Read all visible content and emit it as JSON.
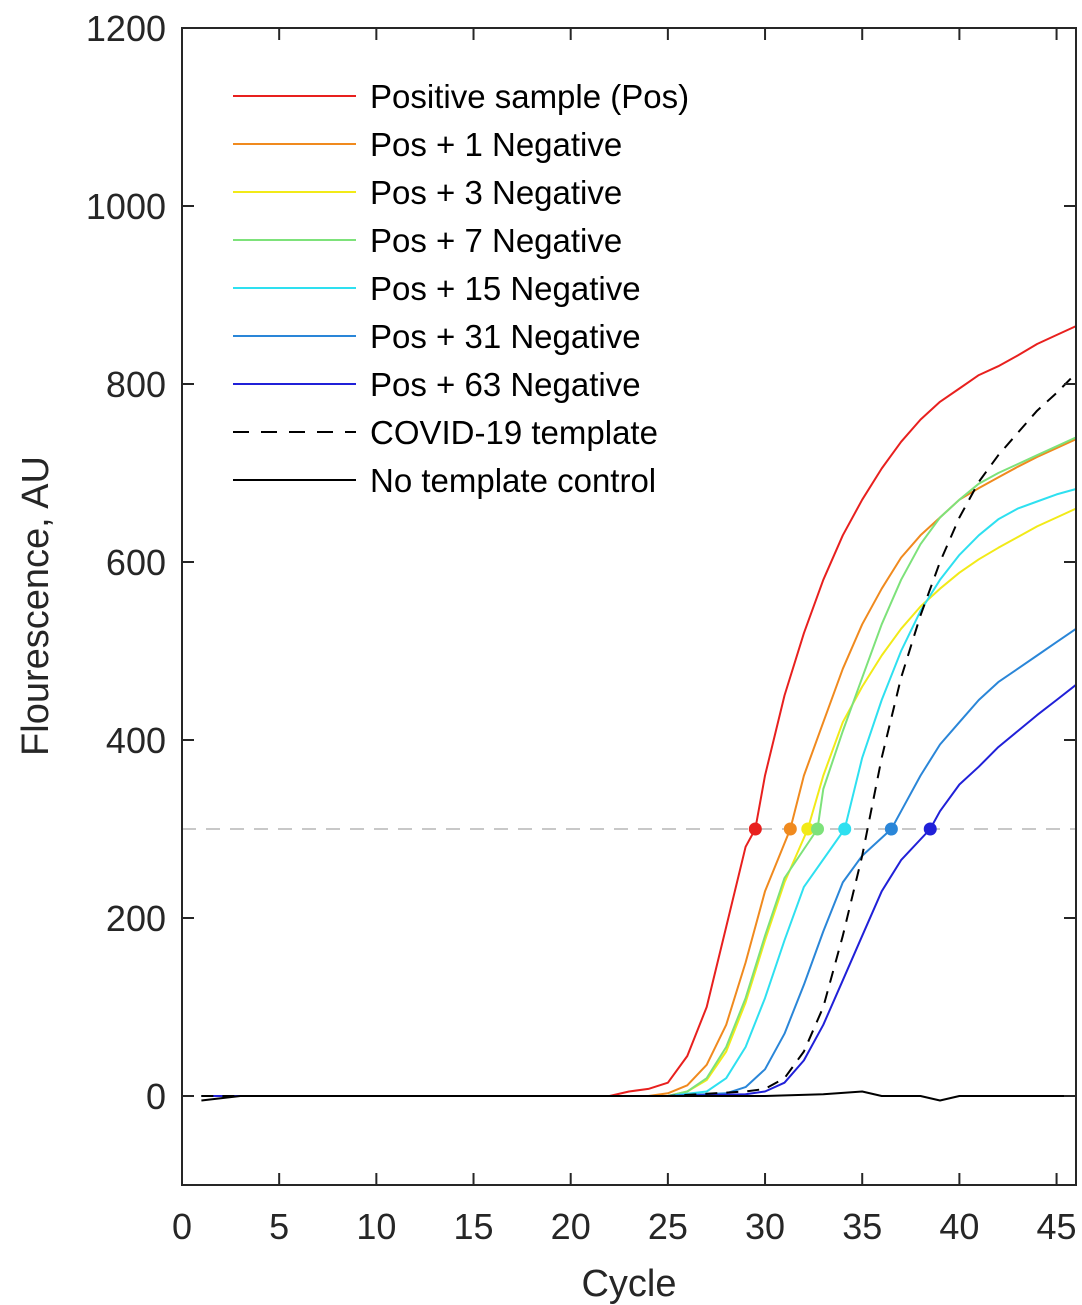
{
  "chart_data": {
    "type": "line",
    "title": "",
    "xlabel": "Cycle",
    "ylabel": "Flourescence, AU",
    "xlim": [
      0,
      46
    ],
    "ylim": [
      -100,
      1200
    ],
    "xticks": [
      0,
      5,
      10,
      15,
      20,
      25,
      30,
      35,
      40,
      45
    ],
    "yticks": [
      0,
      200,
      400,
      600,
      800,
      1000,
      1200
    ],
    "grid": false,
    "legend_position": "top-left",
    "threshold": {
      "y": 300,
      "style": "dashed",
      "color": "#c8c8c8"
    },
    "series": [
      {
        "name": "Positive sample (Pos)",
        "color": "#e8201e",
        "style": "solid",
        "points": [
          [
            1,
            0
          ],
          [
            5,
            0
          ],
          [
            10,
            0
          ],
          [
            15,
            0
          ],
          [
            20,
            0
          ],
          [
            22,
            0
          ],
          [
            23,
            5
          ],
          [
            24,
            8
          ],
          [
            25,
            15
          ],
          [
            26,
            45
          ],
          [
            27,
            100
          ],
          [
            28,
            190
          ],
          [
            29,
            280
          ],
          [
            29.5,
            300
          ],
          [
            30,
            360
          ],
          [
            31,
            450
          ],
          [
            32,
            520
          ],
          [
            33,
            580
          ],
          [
            34,
            630
          ],
          [
            35,
            670
          ],
          [
            36,
            705
          ],
          [
            37,
            735
          ],
          [
            38,
            760
          ],
          [
            39,
            780
          ],
          [
            40,
            795
          ],
          [
            41,
            810
          ],
          [
            42,
            820
          ],
          [
            43,
            832
          ],
          [
            44,
            845
          ],
          [
            45,
            855
          ],
          [
            46,
            865
          ]
        ]
      },
      {
        "name": "Pos + 1 Negative",
        "color": "#f08a1e",
        "style": "solid",
        "points": [
          [
            1,
            0
          ],
          [
            5,
            0
          ],
          [
            10,
            0
          ],
          [
            15,
            0
          ],
          [
            20,
            0
          ],
          [
            24,
            0
          ],
          [
            25,
            3
          ],
          [
            26,
            12
          ],
          [
            27,
            35
          ],
          [
            28,
            80
          ],
          [
            29,
            150
          ],
          [
            30,
            230
          ],
          [
            31.3,
            300
          ],
          [
            32,
            360
          ],
          [
            33,
            420
          ],
          [
            34,
            480
          ],
          [
            35,
            530
          ],
          [
            36,
            570
          ],
          [
            37,
            605
          ],
          [
            38,
            630
          ],
          [
            39,
            650
          ],
          [
            40,
            670
          ],
          [
            41,
            683
          ],
          [
            42,
            695
          ],
          [
            43,
            707
          ],
          [
            44,
            718
          ],
          [
            45,
            728
          ],
          [
            46,
            738
          ]
        ]
      },
      {
        "name": "Pos + 3 Negative",
        "color": "#f2ea18",
        "style": "solid",
        "points": [
          [
            1,
            0
          ],
          [
            5,
            0
          ],
          [
            10,
            0
          ],
          [
            15,
            0
          ],
          [
            20,
            0
          ],
          [
            25,
            0
          ],
          [
            26,
            5
          ],
          [
            27,
            18
          ],
          [
            28,
            50
          ],
          [
            29,
            105
          ],
          [
            30,
            175
          ],
          [
            31,
            240
          ],
          [
            32.2,
            300
          ],
          [
            33,
            360
          ],
          [
            34,
            420
          ],
          [
            35,
            460
          ],
          [
            36,
            495
          ],
          [
            37,
            525
          ],
          [
            38,
            550
          ],
          [
            39,
            570
          ],
          [
            40,
            588
          ],
          [
            41,
            603
          ],
          [
            42,
            616
          ],
          [
            43,
            628
          ],
          [
            44,
            640
          ],
          [
            45,
            650
          ],
          [
            46,
            660
          ]
        ]
      },
      {
        "name": "Pos + 7 Negative",
        "color": "#7de27a",
        "style": "solid",
        "points": [
          [
            1,
            0
          ],
          [
            5,
            0
          ],
          [
            10,
            0
          ],
          [
            15,
            0
          ],
          [
            20,
            0
          ],
          [
            25,
            0
          ],
          [
            26,
            5
          ],
          [
            27,
            20
          ],
          [
            28,
            55
          ],
          [
            29,
            110
          ],
          [
            30,
            180
          ],
          [
            31,
            245
          ],
          [
            32.7,
            300
          ],
          [
            33,
            345
          ],
          [
            34,
            410
          ],
          [
            35,
            470
          ],
          [
            36,
            530
          ],
          [
            37,
            580
          ],
          [
            38,
            620
          ],
          [
            39,
            650
          ],
          [
            40,
            670
          ],
          [
            41,
            688
          ],
          [
            42,
            700
          ],
          [
            43,
            710
          ],
          [
            44,
            720
          ],
          [
            45,
            730
          ],
          [
            46,
            740
          ]
        ]
      },
      {
        "name": "Pos + 15 Negative",
        "color": "#2ee0f0",
        "style": "solid",
        "points": [
          [
            1,
            0
          ],
          [
            5,
            0
          ],
          [
            10,
            0
          ],
          [
            15,
            0
          ],
          [
            20,
            0
          ],
          [
            25,
            0
          ],
          [
            27,
            5
          ],
          [
            28,
            20
          ],
          [
            29,
            55
          ],
          [
            30,
            110
          ],
          [
            31,
            175
          ],
          [
            32,
            235
          ],
          [
            34.1,
            300
          ],
          [
            35,
            380
          ],
          [
            36,
            445
          ],
          [
            37,
            500
          ],
          [
            38,
            545
          ],
          [
            39,
            580
          ],
          [
            40,
            608
          ],
          [
            41,
            630
          ],
          [
            42,
            648
          ],
          [
            43,
            660
          ],
          [
            44,
            668
          ],
          [
            45,
            676
          ],
          [
            46,
            682
          ]
        ]
      },
      {
        "name": "Pos + 31 Negative",
        "color": "#2a86d8",
        "style": "solid",
        "points": [
          [
            1,
            0
          ],
          [
            5,
            0
          ],
          [
            10,
            0
          ],
          [
            15,
            0
          ],
          [
            20,
            0
          ],
          [
            25,
            0
          ],
          [
            28,
            3
          ],
          [
            29,
            10
          ],
          [
            30,
            30
          ],
          [
            31,
            70
          ],
          [
            32,
            125
          ],
          [
            33,
            185
          ],
          [
            34,
            240
          ],
          [
            35,
            270
          ],
          [
            36.5,
            300
          ],
          [
            37,
            320
          ],
          [
            38,
            360
          ],
          [
            39,
            395
          ],
          [
            40,
            420
          ],
          [
            41,
            445
          ],
          [
            42,
            465
          ],
          [
            43,
            480
          ],
          [
            44,
            495
          ],
          [
            45,
            510
          ],
          [
            46,
            525
          ]
        ]
      },
      {
        "name": "Pos + 63 Negative",
        "color": "#2020d8",
        "style": "solid",
        "points": [
          [
            1,
            0
          ],
          [
            5,
            0
          ],
          [
            10,
            0
          ],
          [
            15,
            0
          ],
          [
            20,
            0
          ],
          [
            25,
            0
          ],
          [
            29,
            2
          ],
          [
            30,
            5
          ],
          [
            31,
            15
          ],
          [
            32,
            40
          ],
          [
            33,
            80
          ],
          [
            34,
            130
          ],
          [
            35,
            180
          ],
          [
            36,
            230
          ],
          [
            37,
            265
          ],
          [
            38.5,
            300
          ],
          [
            39,
            320
          ],
          [
            40,
            350
          ],
          [
            41,
            370
          ],
          [
            42,
            392
          ],
          [
            43,
            410
          ],
          [
            44,
            428
          ],
          [
            45,
            445
          ],
          [
            46,
            462
          ]
        ]
      },
      {
        "name": "COVID-19 template",
        "color": "#000000",
        "style": "dashed",
        "points": [
          [
            1,
            0
          ],
          [
            5,
            0
          ],
          [
            10,
            0
          ],
          [
            15,
            0
          ],
          [
            20,
            0
          ],
          [
            25,
            0
          ],
          [
            29,
            5
          ],
          [
            30,
            8
          ],
          [
            31,
            20
          ],
          [
            32,
            50
          ],
          [
            33,
            100
          ],
          [
            34,
            180
          ],
          [
            35,
            270
          ],
          [
            36,
            380
          ],
          [
            37,
            470
          ],
          [
            38,
            540
          ],
          [
            39,
            600
          ],
          [
            40,
            650
          ],
          [
            41,
            690
          ],
          [
            42,
            720
          ],
          [
            43,
            745
          ],
          [
            44,
            770
          ],
          [
            45,
            790
          ],
          [
            46,
            812
          ]
        ]
      },
      {
        "name": "No template control",
        "color": "#000000",
        "style": "solid",
        "points": [
          [
            1,
            -5
          ],
          [
            3,
            0
          ],
          [
            5,
            0
          ],
          [
            8,
            0
          ],
          [
            10,
            0
          ],
          [
            12,
            0
          ],
          [
            15,
            0
          ],
          [
            18,
            0
          ],
          [
            20,
            0
          ],
          [
            25,
            0
          ],
          [
            30,
            0
          ],
          [
            33,
            2
          ],
          [
            35,
            5
          ],
          [
            36,
            0
          ],
          [
            38,
            0
          ],
          [
            39,
            -5
          ],
          [
            40,
            0
          ],
          [
            42,
            0
          ],
          [
            44,
            0
          ],
          [
            46,
            0
          ]
        ]
      }
    ]
  }
}
